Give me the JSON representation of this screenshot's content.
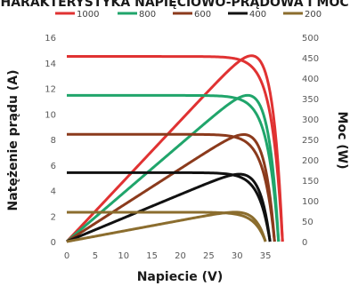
{
  "chart_data": {
    "type": "line",
    "title": "CHARAKTERYSTYKA NAPIĘCIOWO-PRĄDOWA I MOCY",
    "xlabel": "Napiecie (V)",
    "ylabel_left": "Natężenie prądu (A)",
    "ylabel_right": "Moc (W)",
    "xlim": [
      0,
      40
    ],
    "ylim_left": [
      0,
      16
    ],
    "ylim_right": [
      0,
      500
    ],
    "xticks": [
      "0",
      "5",
      "10",
      "15",
      "20",
      "25",
      "30",
      "35"
    ],
    "yticks_left": [
      "0",
      "2",
      "4",
      "6",
      "8",
      "10",
      "12",
      "14",
      "16"
    ],
    "yticks_right": [
      "0",
      "50",
      "100",
      "150",
      "200",
      "250",
      "300",
      "350",
      "400",
      "450",
      "500"
    ],
    "legend_position": "top",
    "grid": false,
    "series": [
      {
        "name": "1000",
        "color": "#e03232",
        "isc": 14.5,
        "voc": 38.0,
        "vmp": 32.5,
        "pmax": 455
      },
      {
        "name": "800",
        "color": "#20a56b",
        "isc": 11.45,
        "voc": 37.3,
        "vmp": 31.5,
        "pmax": 358
      },
      {
        "name": "600",
        "color": "#8b3a1c",
        "isc": 8.4,
        "voc": 36.6,
        "vmp": 30.5,
        "pmax": 262
      },
      {
        "name": "400",
        "color": "#111111",
        "isc": 5.4,
        "voc": 35.8,
        "vmp": 29.5,
        "pmax": 165
      },
      {
        "name": "200",
        "color": "#8b6d2e",
        "isc": 2.3,
        "voc": 35.0,
        "vmp": 28.5,
        "pmax": 72
      }
    ]
  }
}
